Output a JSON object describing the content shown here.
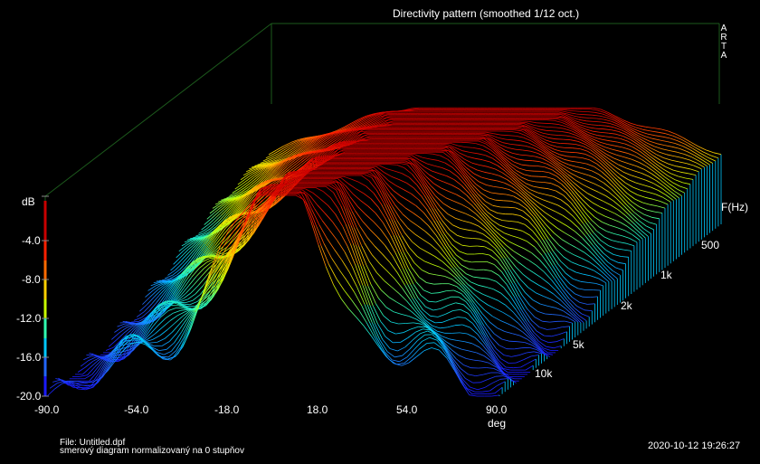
{
  "chart_data": {
    "type": "waterfall-3d",
    "title": "Directivity pattern (smoothed 1/12 oct.)",
    "brand": [
      "A",
      "R",
      "T",
      "A"
    ],
    "colorbar": {
      "label": "dB",
      "ticks": [
        "-4.0",
        "-8.0",
        "-12.0",
        "-16.0",
        "-20.0"
      ],
      "range": [
        -20,
        0
      ],
      "colors": [
        "#1a1aff",
        "#2266ff",
        "#00c8ff",
        "#30ffb0",
        "#c8ff00",
        "#ffd000",
        "#ff6a00",
        "#ff2000",
        "#c80000"
      ]
    },
    "x_axis": {
      "label": "deg",
      "ticks": [
        "-90.0",
        "-54.0",
        "-18.0",
        "18.0",
        "54.0",
        "90.0"
      ],
      "range": [
        -90,
        90
      ]
    },
    "z_axis": {
      "label": "F(Hz)",
      "ticks": [
        "500",
        "1k",
        "2k",
        "5k",
        "10k"
      ]
    },
    "y_range_db": [
      -20,
      0
    ],
    "series_count": 80
  },
  "footer": {
    "file": "File: Untitled.dpf",
    "note": "smerový diagram normalizovaný na 0 stupňov",
    "timestamp": "2020-10-12  19:26:27"
  }
}
